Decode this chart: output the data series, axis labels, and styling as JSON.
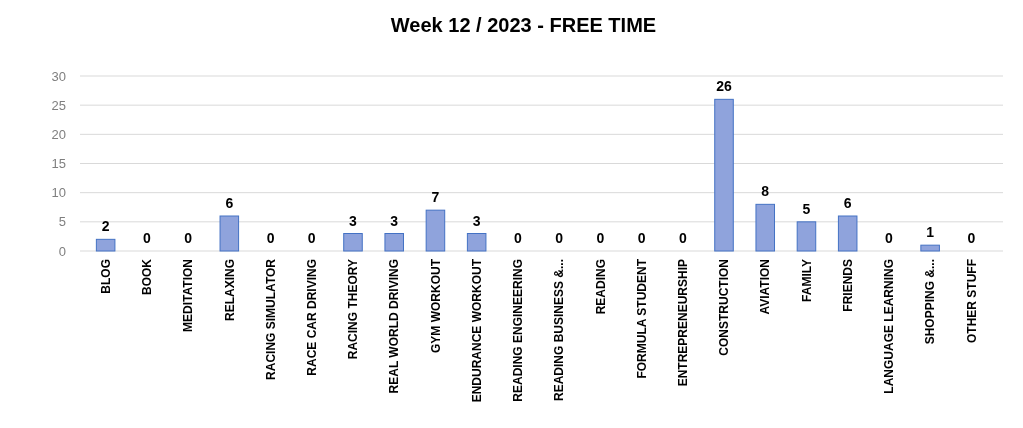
{
  "chart_data": {
    "type": "bar",
    "title": "Week 12 / 2023 - FREE TIME",
    "categories": [
      "BLOG",
      "BOOK",
      "MEDITATION",
      "RELAXING",
      "RACING SIMULATOR",
      "RACE CAR DRIVING",
      "RACING THEORY",
      "REAL WORLD DRIVING",
      "GYM WORKOUT",
      "ENDURANCE WORKOUT",
      "READING ENGINEERING",
      "READING BUSINESS &...",
      "READING",
      "FORMULA STUDENT",
      "ENTREPRENEURSHIP",
      "CONSTRUCTION",
      "AVIATION",
      "FAMILY",
      "FRIENDS",
      "LANGUAGE LEARNING",
      "SHOPPING &...",
      "OTHER STUFF"
    ],
    "values": [
      2,
      0,
      0,
      6,
      0,
      0,
      3,
      3,
      7,
      3,
      0,
      0,
      0,
      0,
      0,
      26,
      8,
      5,
      6,
      0,
      1,
      0
    ],
    "color": "#8fa3dc",
    "ylim": [
      0,
      30
    ],
    "yticks": [
      0,
      5,
      10,
      15,
      20,
      25,
      30
    ],
    "grid": true,
    "data_labels": true
  }
}
